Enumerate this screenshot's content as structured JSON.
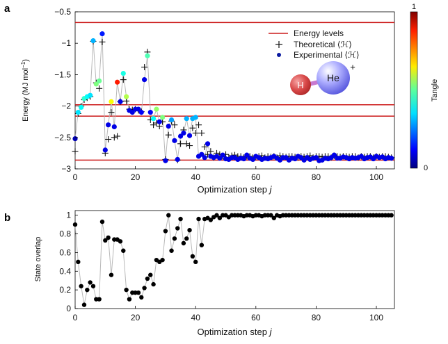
{
  "chart_data": [
    {
      "panel_label": "a",
      "type": "scatter",
      "xlabel": "Optimization step",
      "xlabel_var": "j",
      "ylabel": "Energy (MJ mol",
      "ylabel_sup": "−1",
      "ylabel_close": ")",
      "xlim": [
        0,
        106
      ],
      "ylim": [
        -3.0,
        -0.5
      ],
      "xticks": [
        0,
        20,
        40,
        60,
        80,
        100
      ],
      "xtick_labels": [
        "0",
        "20",
        "40",
        "60",
        "80",
        "100"
      ],
      "yticks": [
        -3.0,
        -2.5,
        -2.0,
        -1.5,
        -1.0,
        -0.5
      ],
      "ytick_labels": [
        "−3",
        "−2.5",
        "−2",
        "−1.5",
        "−1",
        "−0.5"
      ],
      "energy_levels": [
        -0.67,
        -1.98,
        -2.16,
        -2.86
      ],
      "legend": {
        "energy_levels": "Energy levels",
        "theoretical": "Theoretical ⟨ℋ⟩",
        "experimental": "Experimental ⟨ℋ⟩"
      },
      "molecule": {
        "atom1": "H",
        "atom2": "He",
        "charge": "+"
      },
      "colorbar": {
        "label": "Tangle",
        "min_label": "0",
        "max_label": "1",
        "min": 0,
        "max": 1
      },
      "colors": {
        "energy_level": "#cc1b1b",
        "connector": "#b8b8b8",
        "theoretical_marker": "#111111"
      },
      "series": [
        {
          "name": "Theoretical ⟨ℋ⟩",
          "x": [
            0,
            1,
            2,
            3,
            4,
            5,
            6,
            7,
            8,
            9,
            10,
            11,
            12,
            13,
            14,
            15,
            16,
            17,
            18,
            19,
            20,
            21,
            22,
            23,
            24,
            25,
            26,
            27,
            28,
            29,
            30,
            31,
            32,
            33,
            34,
            35,
            36,
            37,
            38,
            39,
            40,
            41,
            42,
            43,
            44,
            45,
            46,
            47,
            48,
            49,
            50,
            51,
            52,
            53,
            54,
            55,
            56,
            57,
            58,
            59,
            60,
            61,
            62,
            63,
            64,
            65,
            66,
            67,
            68,
            69,
            70,
            71,
            72,
            73,
            74,
            75,
            76,
            77,
            78,
            79,
            80,
            81,
            82,
            83,
            84,
            85,
            86,
            87,
            88,
            89,
            90,
            91,
            92,
            93,
            94,
            95,
            96,
            97,
            98,
            99,
            100,
            101,
            102,
            103,
            104,
            105
          ],
          "y": [
            -2.72,
            -2.12,
            -2.0,
            -1.9,
            -1.87,
            -1.85,
            -0.97,
            -1.63,
            -1.72,
            -0.98,
            -2.75,
            -2.53,
            -2.1,
            -2.5,
            -2.48,
            -1.93,
            -1.58,
            -1.92,
            -2.05,
            -2.06,
            -2.05,
            -2.07,
            -2.09,
            -1.38,
            -1.14,
            -2.22,
            -2.3,
            -2.27,
            -2.32,
            -2.25,
            -2.85,
            -2.46,
            -2.24,
            -2.3,
            -2.86,
            -2.6,
            -2.38,
            -2.6,
            -2.63,
            -2.35,
            -2.43,
            -2.3,
            -2.43,
            -2.65,
            -2.77,
            -2.72,
            -2.82,
            -2.75,
            -2.77,
            -2.8,
            -2.77,
            -2.82,
            -2.79,
            -2.78,
            -2.8,
            -2.8,
            -2.82,
            -2.8,
            -2.8,
            -2.82,
            -2.81,
            -2.8,
            -2.79,
            -2.82,
            -2.8,
            -2.81,
            -2.8,
            -2.82,
            -2.79,
            -2.8,
            -2.81,
            -2.8,
            -2.8,
            -2.81,
            -2.82,
            -2.8,
            -2.81,
            -2.8,
            -2.79,
            -2.82,
            -2.8,
            -2.8,
            -2.81,
            -2.8,
            -2.8,
            -2.82,
            -2.79,
            -2.8,
            -2.81,
            -2.8,
            -2.8,
            -2.81,
            -2.8,
            -2.8,
            -2.82,
            -2.8,
            -2.81,
            -2.8,
            -2.8,
            -2.82,
            -2.8,
            -2.81,
            -2.8,
            -2.8,
            -2.81,
            -2.82
          ]
        },
        {
          "name": "Experimental ⟨ℋ⟩",
          "x": [
            0,
            1,
            2,
            3,
            4,
            5,
            6,
            7,
            8,
            9,
            10,
            11,
            12,
            13,
            14,
            15,
            16,
            17,
            18,
            19,
            20,
            21,
            22,
            23,
            24,
            25,
            26,
            27,
            28,
            29,
            30,
            31,
            32,
            33,
            34,
            35,
            36,
            37,
            38,
            39,
            40,
            41,
            42,
            43,
            44,
            45,
            46,
            47,
            48,
            49,
            50,
            51,
            52,
            53,
            54,
            55,
            56,
            57,
            58,
            59,
            60,
            61,
            62,
            63,
            64,
            65,
            66,
            67,
            68,
            69,
            70,
            71,
            72,
            73,
            74,
            75,
            76,
            77,
            78,
            79,
            80,
            81,
            82,
            83,
            84,
            85,
            86,
            87,
            88,
            89,
            90,
            91,
            92,
            93,
            94,
            95,
            96,
            97,
            98,
            99,
            100,
            101,
            102,
            103,
            104,
            105
          ],
          "y": [
            -2.52,
            -2.1,
            -2.02,
            -1.88,
            -1.85,
            -1.83,
            -0.96,
            -1.65,
            -1.6,
            -0.85,
            -2.7,
            -2.3,
            -1.93,
            -2.33,
            -1.62,
            -1.93,
            -1.48,
            -1.85,
            -2.07,
            -2.1,
            -2.05,
            -2.05,
            -2.1,
            -1.58,
            -1.2,
            -2.1,
            -2.2,
            -2.05,
            -2.25,
            -2.18,
            -2.87,
            -2.32,
            -2.22,
            -2.55,
            -2.85,
            -2.48,
            -2.43,
            -2.2,
            -2.47,
            -2.2,
            -2.18,
            -2.8,
            -2.77,
            -2.82,
            -2.6,
            -2.8,
            -2.82,
            -2.8,
            -2.83,
            -2.78,
            -2.84,
            -2.85,
            -2.82,
            -2.82,
            -2.85,
            -2.83,
            -2.84,
            -2.78,
            -2.83,
            -2.85,
            -2.8,
            -2.82,
            -2.85,
            -2.83,
            -2.84,
            -2.82,
            -2.8,
            -2.83,
            -2.86,
            -2.82,
            -2.82,
            -2.86,
            -2.83,
            -2.84,
            -2.8,
            -2.82,
            -2.86,
            -2.82,
            -2.85,
            -2.83,
            -2.82,
            -2.87,
            -2.86,
            -2.83,
            -2.84,
            -2.82,
            -2.78,
            -2.83,
            -2.83,
            -2.81,
            -2.82,
            -2.84,
            -2.82,
            -2.83,
            -2.82,
            -2.8,
            -2.84,
            -2.82,
            -2.81,
            -2.84,
            -2.8,
            -2.82,
            -2.81,
            -2.84,
            -2.82,
            -2.83
          ],
          "tangle": [
            0.05,
            0.35,
            0.38,
            0.42,
            0.38,
            0.35,
            0.3,
            0.5,
            0.48,
            0.15,
            0.1,
            0.1,
            0.62,
            0.1,
            0.85,
            0.1,
            0.4,
            0.55,
            0.1,
            0.1,
            0.1,
            0.1,
            0.12,
            0.1,
            0.45,
            0.12,
            0.38,
            0.52,
            0.1,
            0.5,
            0.1,
            0.1,
            0.28,
            0.1,
            0.1,
            0.1,
            0.1,
            0.3,
            0.1,
            0.3,
            0.3,
            0.1,
            0.1,
            0.1,
            0.1,
            0.1,
            0.1,
            0.1,
            0.1,
            0.1,
            0.1,
            0.1,
            0.1,
            0.1,
            0.1,
            0.1,
            0.1,
            0.1,
            0.1,
            0.1,
            0.1,
            0.1,
            0.1,
            0.1,
            0.1,
            0.1,
            0.1,
            0.1,
            0.1,
            0.1,
            0.1,
            0.1,
            0.1,
            0.1,
            0.1,
            0.1,
            0.1,
            0.1,
            0.1,
            0.1,
            0.1,
            0.1,
            0.1,
            0.1,
            0.1,
            0.1,
            0.1,
            0.1,
            0.1,
            0.1,
            0.1,
            0.1,
            0.1,
            0.1,
            0.1,
            0.1,
            0.1,
            0.1,
            0.1,
            0.1,
            0.1,
            0.1,
            0.1,
            0.1,
            0.1,
            0.1
          ]
        }
      ]
    },
    {
      "panel_label": "b",
      "type": "scatter",
      "xlabel": "Optimization step",
      "xlabel_var": "j",
      "ylabel": "State overlap",
      "xlim": [
        0,
        106
      ],
      "ylim": [
        0,
        1.05
      ],
      "xticks": [
        0,
        20,
        40,
        60,
        80,
        100
      ],
      "xtick_labels": [
        "0",
        "20",
        "40",
        "60",
        "80",
        "100"
      ],
      "yticks": [
        0,
        0.2,
        0.4,
        0.6,
        0.8,
        1.0
      ],
      "ytick_labels": [
        "0",
        "0.2",
        "0.4",
        "0.6",
        "0.8",
        "1"
      ],
      "colors": {
        "marker": "#000000",
        "connector": "#b8b8b8"
      },
      "series": [
        {
          "name": "",
          "x": [
            0,
            1,
            2,
            3,
            4,
            5,
            6,
            7,
            8,
            9,
            10,
            11,
            12,
            13,
            14,
            15,
            16,
            17,
            18,
            19,
            20,
            21,
            22,
            23,
            24,
            25,
            26,
            27,
            28,
            29,
            30,
            31,
            32,
            33,
            34,
            35,
            36,
            37,
            38,
            39,
            40,
            41,
            42,
            43,
            44,
            45,
            46,
            47,
            48,
            49,
            50,
            51,
            52,
            53,
            54,
            55,
            56,
            57,
            58,
            59,
            60,
            61,
            62,
            63,
            64,
            65,
            66,
            67,
            68,
            69,
            70,
            71,
            72,
            73,
            74,
            75,
            76,
            77,
            78,
            79,
            80,
            81,
            82,
            83,
            84,
            85,
            86,
            87,
            88,
            89,
            90,
            91,
            92,
            93,
            94,
            95,
            96,
            97,
            98,
            99,
            100,
            101,
            102,
            103,
            104,
            105
          ],
          "y": [
            0.9,
            0.5,
            0.24,
            0.04,
            0.2,
            0.28,
            0.24,
            0.1,
            0.1,
            0.93,
            0.73,
            0.76,
            0.36,
            0.74,
            0.74,
            0.72,
            0.62,
            0.2,
            0.1,
            0.17,
            0.17,
            0.17,
            0.12,
            0.22,
            0.32,
            0.36,
            0.26,
            0.52,
            0.5,
            0.52,
            0.83,
            1.0,
            0.62,
            0.75,
            0.86,
            0.96,
            0.7,
            0.75,
            0.84,
            0.56,
            0.5,
            0.96,
            0.68,
            0.96,
            0.97,
            0.95,
            0.98,
            1.0,
            0.97,
            1.0,
            1.0,
            0.98,
            1.0,
            1.0,
            1.0,
            1.0,
            0.99,
            1.0,
            1.0,
            0.99,
            1.0,
            1.0,
            0.99,
            1.0,
            1.0,
            1.0,
            0.97,
            1.0,
            0.99,
            1.0,
            1.0,
            1.0,
            1.0,
            1.0,
            1.0,
            1.0,
            1.0,
            1.0,
            1.0,
            1.0,
            1.0,
            1.0,
            1.0,
            1.0,
            1.0,
            1.0,
            1.0,
            1.0,
            1.0,
            1.0,
            1.0,
            1.0,
            1.0,
            1.0,
            1.0,
            1.0,
            1.0,
            1.0,
            1.0,
            1.0,
            1.0,
            1.0,
            1.0,
            1.0,
            1.0,
            1.0
          ]
        }
      ]
    }
  ]
}
